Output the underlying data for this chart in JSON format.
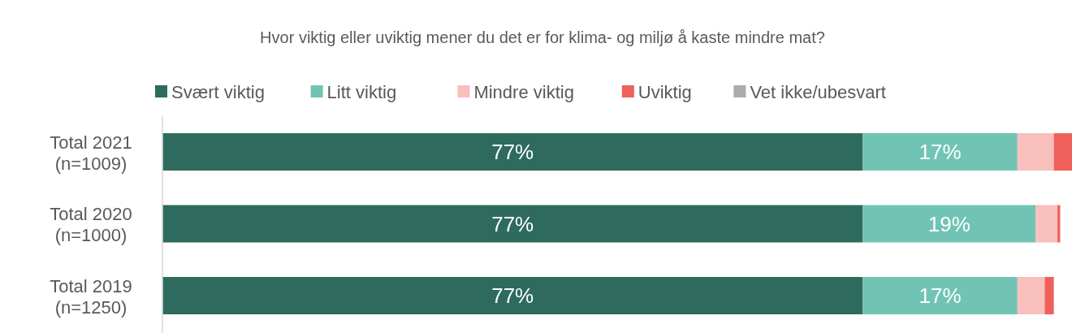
{
  "chart_data": {
    "type": "bar",
    "orientation": "horizontal",
    "stacked": true,
    "title": "Hvor viktig eller uviktig mener du det er for klima- og miljø å kaste mindre mat?",
    "categories": [
      "Total 2021\n(n=1009)",
      "Total 2020\n(n=1000)",
      "Total 2019\n(n=1250)"
    ],
    "xlim": [
      0,
      100
    ],
    "tick_labels": "y",
    "legend": "top",
    "series": [
      {
        "name": "Svært viktig",
        "color": "#2e6b5e",
        "values": [
          77,
          77,
          77
        ],
        "value_labels": [
          "77%",
          "77%",
          "77%"
        ]
      },
      {
        "name": "Litt viktig",
        "color": "#71c4b3",
        "values": [
          17,
          19,
          17
        ],
        "value_labels": [
          "17%",
          "19%",
          "17%"
        ]
      },
      {
        "name": "Mindre viktig",
        "color": "#f8bfbc",
        "values": [
          4,
          2.4,
          3
        ]
      },
      {
        "name": "Uviktig",
        "color": "#f0605a",
        "values": [
          2,
          0.3,
          1
        ]
      },
      {
        "name": "Vet ikke/ubesvart",
        "color": "#aeaaaa",
        "values": [
          null,
          null,
          null
        ]
      }
    ]
  }
}
